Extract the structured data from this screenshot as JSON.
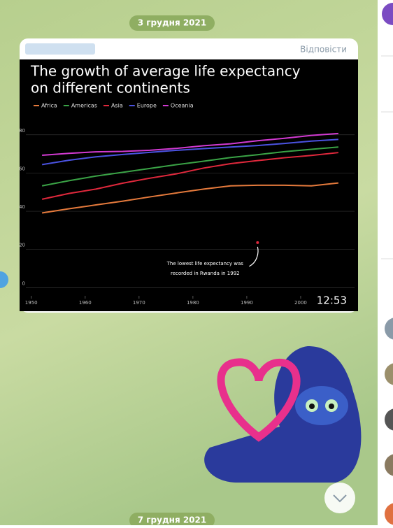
{
  "chat": {
    "date_top": "3 грудня 2021",
    "date_bottom": "7 грудня 2021",
    "reply": "Відповісти",
    "duration": "12:53"
  },
  "chart_data": {
    "type": "line",
    "title": [
      "The growth of average life expectancy",
      "on different continents"
    ],
    "x": [
      1952,
      1957,
      1962,
      1967,
      1972,
      1977,
      1982,
      1987,
      1992,
      1997,
      2002,
      2007
    ],
    "series": [
      {
        "name": "Africa",
        "color": "#e57a3c",
        "values": [
          39.1,
          41.3,
          43.3,
          45.3,
          47.5,
          49.6,
          51.6,
          53.3,
          53.6,
          53.6,
          53.3,
          54.8
        ]
      },
      {
        "name": "Americas",
        "color": "#3aa346",
        "values": [
          53.3,
          56.0,
          58.4,
          60.4,
          62.4,
          64.4,
          66.2,
          68.1,
          69.6,
          71.2,
          72.4,
          73.6
        ]
      },
      {
        "name": "Asia",
        "color": "#e0283c",
        "values": [
          46.3,
          49.3,
          51.6,
          54.7,
          57.3,
          59.6,
          62.6,
          64.9,
          66.5,
          68.0,
          69.2,
          70.7
        ]
      },
      {
        "name": "Europe",
        "color": "#4a52e0",
        "values": [
          64.4,
          66.7,
          68.5,
          69.7,
          70.8,
          71.9,
          72.8,
          73.6,
          74.4,
          75.5,
          76.7,
          77.6
        ]
      },
      {
        "name": "Oceania",
        "color": "#d23ad2",
        "values": [
          69.3,
          70.3,
          71.1,
          71.3,
          71.9,
          72.9,
          74.3,
          75.3,
          76.9,
          78.2,
          79.7,
          80.7
        ]
      }
    ],
    "annotation": {
      "text": [
        "The lowest life expectancy was",
        "recorded in Rwanda in 1992"
      ],
      "x": 1992,
      "y": 23.6,
      "color": "#e0283c"
    },
    "xlim": [
      1949,
      2010
    ],
    "xticks": [
      1950,
      1960,
      1970,
      1980,
      1990,
      2000
    ],
    "ylim": [
      -5,
      92
    ],
    "yticks": [
      0,
      20,
      40,
      60,
      80
    ],
    "grid": true
  }
}
